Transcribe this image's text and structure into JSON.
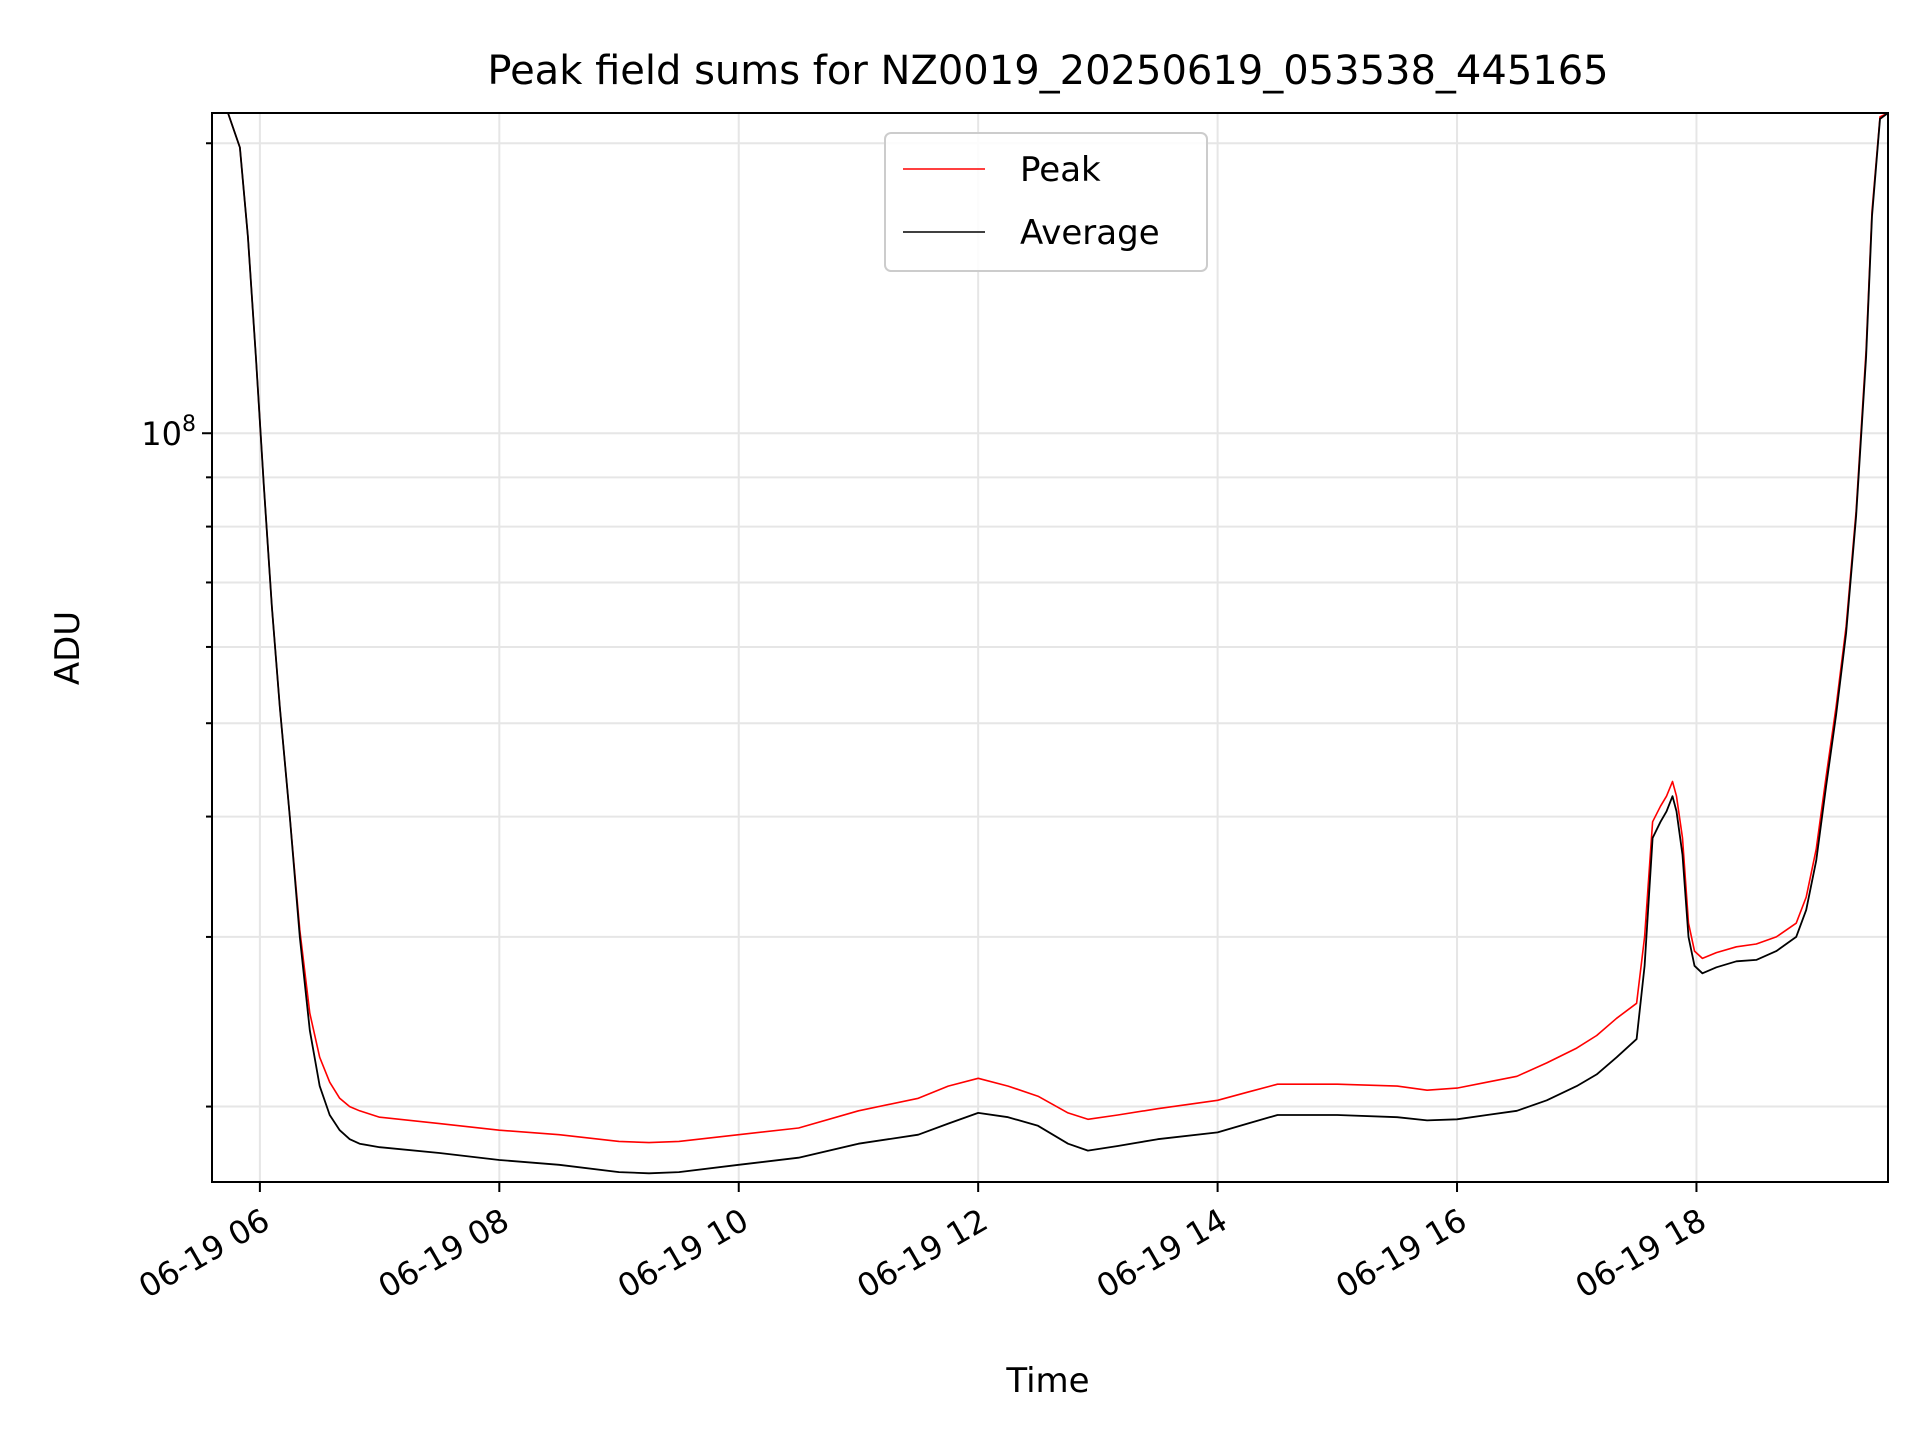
{
  "chart_data": {
    "type": "line",
    "title": "Peak field sums for NZ0019_20250619_053538_445165",
    "xlabel": "Time",
    "ylabel": "ADU",
    "yscale": "log",
    "xlim": [
      "2025-06-19T05:36",
      "2025-06-19T19:36"
    ],
    "ylim": [
      16700000,
      215000000
    ],
    "x_ticks": [
      {
        "value": "2025-06-19T06:00",
        "label": "06-19 06"
      },
      {
        "value": "2025-06-19T08:00",
        "label": "06-19 08"
      },
      {
        "value": "2025-06-19T10:00",
        "label": "06-19 10"
      },
      {
        "value": "2025-06-19T12:00",
        "label": "06-19 12"
      },
      {
        "value": "2025-06-19T14:00",
        "label": "06-19 14"
      },
      {
        "value": "2025-06-19T16:00",
        "label": "06-19 16"
      },
      {
        "value": "2025-06-19T18:00",
        "label": "06-19 18"
      }
    ],
    "y_major_tick": {
      "value": 100000000,
      "base": "10",
      "exponent": "8"
    },
    "grid": true,
    "legend": {
      "position": "top-center",
      "entries": [
        "Peak",
        "Average"
      ]
    },
    "series": [
      {
        "name": "Average",
        "color": "#000000",
        "x": [
          "05:36",
          "05:44",
          "05:50",
          "05:54",
          "05:58",
          "06:02",
          "06:06",
          "06:10",
          "06:15",
          "06:20",
          "06:25",
          "06:30",
          "06:35",
          "06:40",
          "06:45",
          "06:50",
          "07:00",
          "07:30",
          "08:00",
          "08:30",
          "09:00",
          "09:15",
          "09:30",
          "10:00",
          "10:30",
          "11:00",
          "11:30",
          "11:45",
          "12:00",
          "12:15",
          "12:30",
          "12:45",
          "12:55",
          "13:10",
          "13:30",
          "14:00",
          "14:15",
          "14:30",
          "15:00",
          "15:30",
          "15:45",
          "16:00",
          "16:15",
          "16:30",
          "16:45",
          "17:00",
          "17:10",
          "17:20",
          "17:30",
          "17:34",
          "17:38",
          "17:42",
          "17:45",
          "17:48",
          "17:50",
          "17:53",
          "17:56",
          "17:59",
          "18:03",
          "18:10",
          "18:20",
          "18:30",
          "18:40",
          "18:50",
          "18:55",
          "19:00",
          "19:05",
          "19:10",
          "19:15",
          "19:20",
          "19:25",
          "19:28",
          "19:32",
          "19:36"
        ],
        "y": [
          215000000,
          215000000,
          198000000,
          160000000,
          120000000,
          88000000,
          66000000,
          52000000,
          40000000,
          30000000,
          24000000,
          21000000,
          19600000,
          18900000,
          18500000,
          18300000,
          18150000,
          17900000,
          17600000,
          17400000,
          17100000,
          17050000,
          17100000,
          17400000,
          17700000,
          18300000,
          18700000,
          19200000,
          19700000,
          19500000,
          19100000,
          18300000,
          18000000,
          18200000,
          18500000,
          18800000,
          19200000,
          19600000,
          19600000,
          19500000,
          19350000,
          19400000,
          19600000,
          19800000,
          20300000,
          21000000,
          21600000,
          22500000,
          23500000,
          28000000,
          38000000,
          39500000,
          40500000,
          42000000,
          40500000,
          36500000,
          30000000,
          28000000,
          27500000,
          27900000,
          28300000,
          28400000,
          29000000,
          30000000,
          32000000,
          36000000,
          43000000,
          51000000,
          62000000,
          82000000,
          120000000,
          168000000,
          212000000,
          215000000
        ]
      },
      {
        "name": "Peak",
        "color": "#ff0000",
        "x": [
          "05:36",
          "05:44",
          "05:50",
          "05:54",
          "05:58",
          "06:02",
          "06:06",
          "06:10",
          "06:15",
          "06:20",
          "06:25",
          "06:30",
          "06:35",
          "06:40",
          "06:45",
          "06:50",
          "07:00",
          "07:30",
          "08:00",
          "08:30",
          "09:00",
          "09:15",
          "09:30",
          "10:00",
          "10:30",
          "11:00",
          "11:30",
          "11:45",
          "12:00",
          "12:15",
          "12:30",
          "12:45",
          "12:55",
          "13:10",
          "13:30",
          "14:00",
          "14:15",
          "14:30",
          "15:00",
          "15:30",
          "15:45",
          "16:00",
          "16:15",
          "16:30",
          "16:45",
          "17:00",
          "17:10",
          "17:20",
          "17:30",
          "17:34",
          "17:38",
          "17:42",
          "17:45",
          "17:48",
          "17:50",
          "17:53",
          "17:56",
          "17:59",
          "18:03",
          "18:10",
          "18:20",
          "18:30",
          "18:40",
          "18:50",
          "18:55",
          "19:00",
          "19:05",
          "19:10",
          "19:15",
          "19:20",
          "19:25",
          "19:28",
          "19:32",
          "19:36"
        ],
        "y": [
          215000000,
          215000000,
          198000000,
          160000000,
          120000000,
          88000000,
          66000000,
          52000000,
          40000000,
          30500000,
          25000000,
          22500000,
          21200000,
          20400000,
          20000000,
          19800000,
          19500000,
          19200000,
          18900000,
          18700000,
          18400000,
          18350000,
          18400000,
          18700000,
          19000000,
          19800000,
          20400000,
          21000000,
          21400000,
          21000000,
          20500000,
          19700000,
          19400000,
          19600000,
          19900000,
          20300000,
          20700000,
          21100000,
          21100000,
          21000000,
          20800000,
          20900000,
          21200000,
          21500000,
          22200000,
          23000000,
          23700000,
          24700000,
          25600000,
          30000000,
          39500000,
          41000000,
          42000000,
          43500000,
          42000000,
          38000000,
          31000000,
          29000000,
          28500000,
          28900000,
          29300000,
          29500000,
          30000000,
          31000000,
          33000000,
          37000000,
          44000000,
          52000000,
          63000000,
          83000000,
          122000000,
          170000000,
          213000000,
          215000000
        ]
      }
    ]
  }
}
